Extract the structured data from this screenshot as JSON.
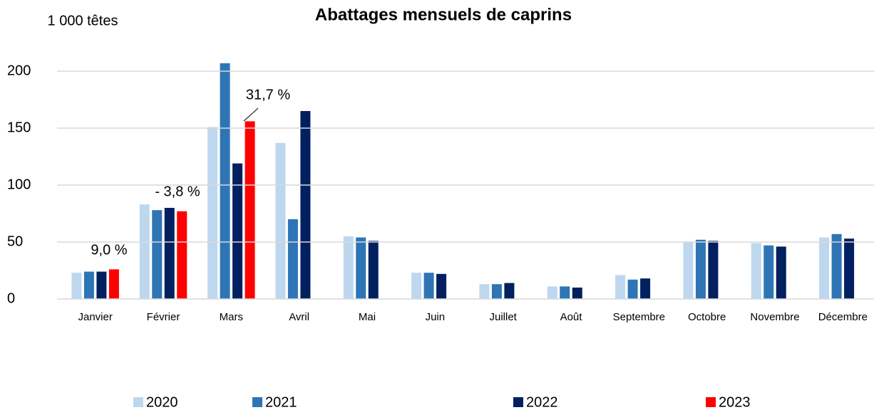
{
  "chart_data": {
    "type": "bar",
    "title": "Abattages mensuels de caprins",
    "y_label": "1 000 têtes",
    "categories": [
      "Janvier",
      "Février",
      "Mars",
      "Avril",
      "Mai",
      "Juin",
      "Juillet",
      "Août",
      "Septembre",
      "Octobre",
      "Novembre",
      "Décembre"
    ],
    "series": [
      {
        "name": "2020",
        "color": "#bdd7ee",
        "values": [
          23,
          83,
          151,
          137,
          55,
          23,
          13,
          11,
          21,
          50,
          49,
          54
        ]
      },
      {
        "name": "2021",
        "color": "#2e75b6",
        "values": [
          24,
          78,
          207,
          70,
          54,
          23,
          13,
          11,
          17,
          52,
          47,
          57
        ]
      },
      {
        "name": "2022",
        "color": "#002060",
        "values": [
          24,
          80,
          119,
          165,
          51,
          22,
          14,
          10,
          18,
          51,
          46,
          53
        ]
      },
      {
        "name": "2023",
        "color": "#ff0000",
        "values": [
          26,
          77,
          156,
          null,
          null,
          null,
          null,
          null,
          null,
          null,
          null,
          null
        ]
      }
    ],
    "annotations": [
      "9,0 %",
      "- 3,8 %",
      "31,7 %"
    ],
    "ylim": [
      0,
      200
    ],
    "yticks": [
      0,
      50,
      100,
      150,
      200
    ],
    "grid": true
  }
}
